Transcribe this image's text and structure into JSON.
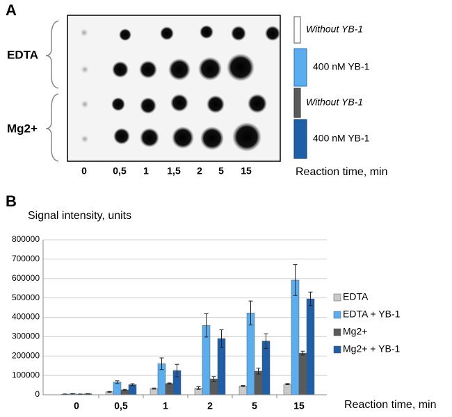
{
  "panel_a": {
    "label": "A",
    "groups": [
      "EDTA",
      "Mg2+"
    ],
    "rows": [
      "Without YB-1",
      "400 nM YB-1",
      "Without YB-1",
      "400 nM YB-1"
    ],
    "lanes": [
      "0",
      "0,5",
      "1",
      "1,5",
      "2",
      "5",
      "15"
    ],
    "x_label": "Reaction time, min"
  },
  "chart_data": {
    "type": "bar",
    "panel_label": "B",
    "ylabel": "Signal intensity, units",
    "xlabel": "Reaction time, min",
    "categories": [
      "0",
      "0,5",
      "1",
      "2",
      "5",
      "15"
    ],
    "series": [
      {
        "name": "EDTA",
        "color": "#c9c9c9",
        "values": [
          3000,
          15000,
          32000,
          35000,
          45000,
          55000
        ],
        "errors": [
          1000,
          2000,
          3000,
          7000,
          3000,
          3000
        ]
      },
      {
        "name": "EDTA + YB-1",
        "color": "#5aaef0",
        "values": [
          5000,
          65000,
          160000,
          358000,
          422000,
          592000
        ],
        "errors": [
          1000,
          7000,
          30000,
          60000,
          62000,
          80000
        ]
      },
      {
        "name": "Mg2+",
        "color": "#5a5a5a",
        "values": [
          3000,
          25000,
          58000,
          82000,
          122000,
          215000
        ],
        "errors": [
          1000,
          3000,
          3000,
          12000,
          15000,
          10000
        ]
      },
      {
        "name": "Mg2+ + YB-1",
        "color": "#1f5fa8",
        "values": [
          5000,
          52000,
          125000,
          290000,
          277000,
          495000
        ],
        "errors": [
          1000,
          5000,
          32000,
          45000,
          38000,
          35000
        ]
      }
    ],
    "ylim": [
      0,
      800000
    ],
    "yticks": [
      0,
      100000,
      200000,
      300000,
      400000,
      500000,
      600000,
      700000,
      800000
    ],
    "grid": true
  }
}
